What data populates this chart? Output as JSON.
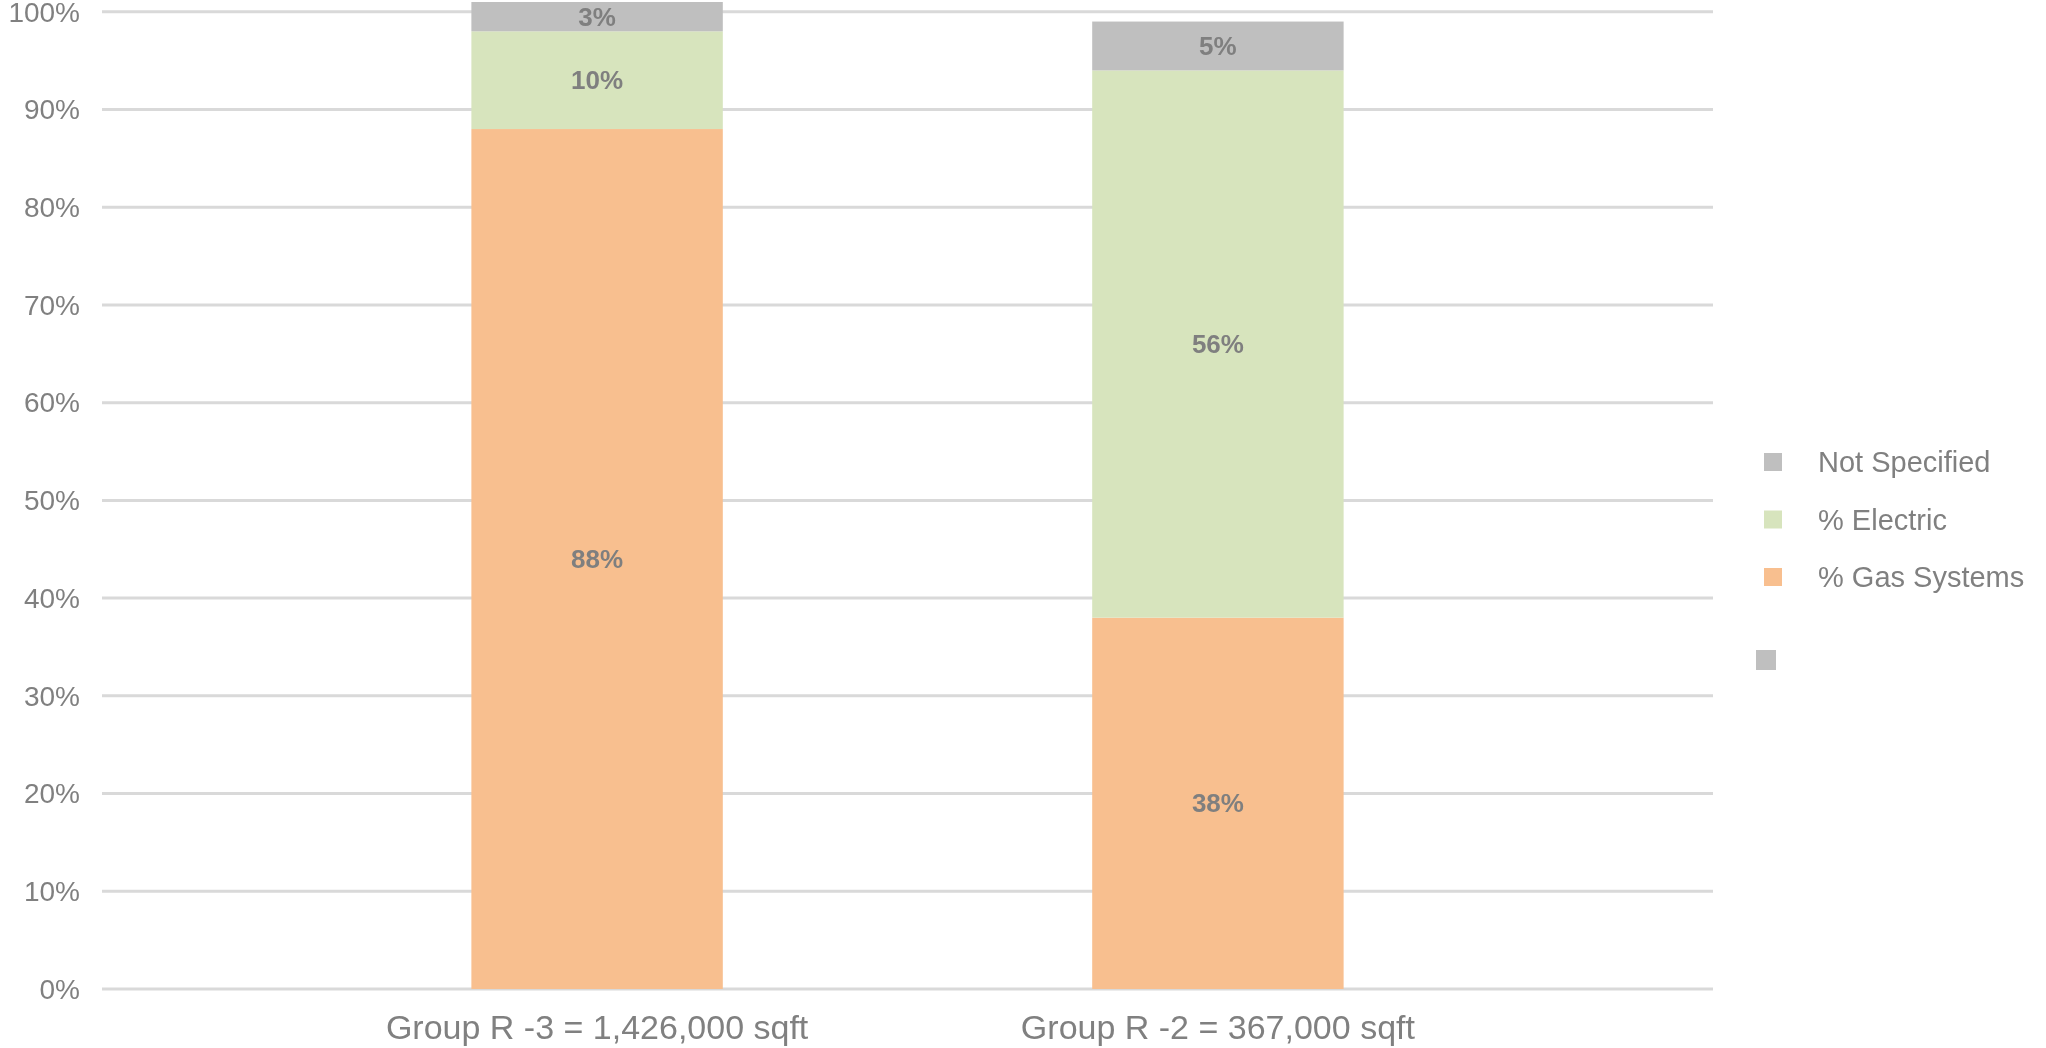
{
  "chart_data": {
    "type": "bar",
    "stacked": true,
    "categories": [
      "Group R -3 = 1,426,000 sqft",
      "Group R -2 = 367,000 sqft"
    ],
    "series": [
      {
        "name": "% Gas Systems",
        "color": "#f8bf8f",
        "values": [
          88,
          38
        ],
        "value_labels": [
          "88%",
          "38%"
        ]
      },
      {
        "name": "% Electric",
        "color": "#d7e4bd",
        "values": [
          10,
          56
        ],
        "value_labels": [
          "10%",
          "56%"
        ]
      },
      {
        "name": "Not Specified",
        "color": "#bfbfbf",
        "values": [
          3,
          5
        ],
        "value_labels": [
          "3%",
          "5%"
        ]
      }
    ],
    "ylim": [
      0,
      101
    ],
    "yticks": [
      {
        "value": 0,
        "label": "0%"
      },
      {
        "value": 10,
        "label": "10%"
      },
      {
        "value": 20,
        "label": "20%"
      },
      {
        "value": 30,
        "label": "30%"
      },
      {
        "value": 40,
        "label": "40%"
      },
      {
        "value": 50,
        "label": "50%"
      },
      {
        "value": 60,
        "label": "60%"
      },
      {
        "value": 70,
        "label": "70%"
      },
      {
        "value": 80,
        "label": "80%"
      },
      {
        "value": 90,
        "label": "90%"
      },
      {
        "value": 100,
        "label": "100%"
      }
    ],
    "grid": "y",
    "legend": "right"
  }
}
